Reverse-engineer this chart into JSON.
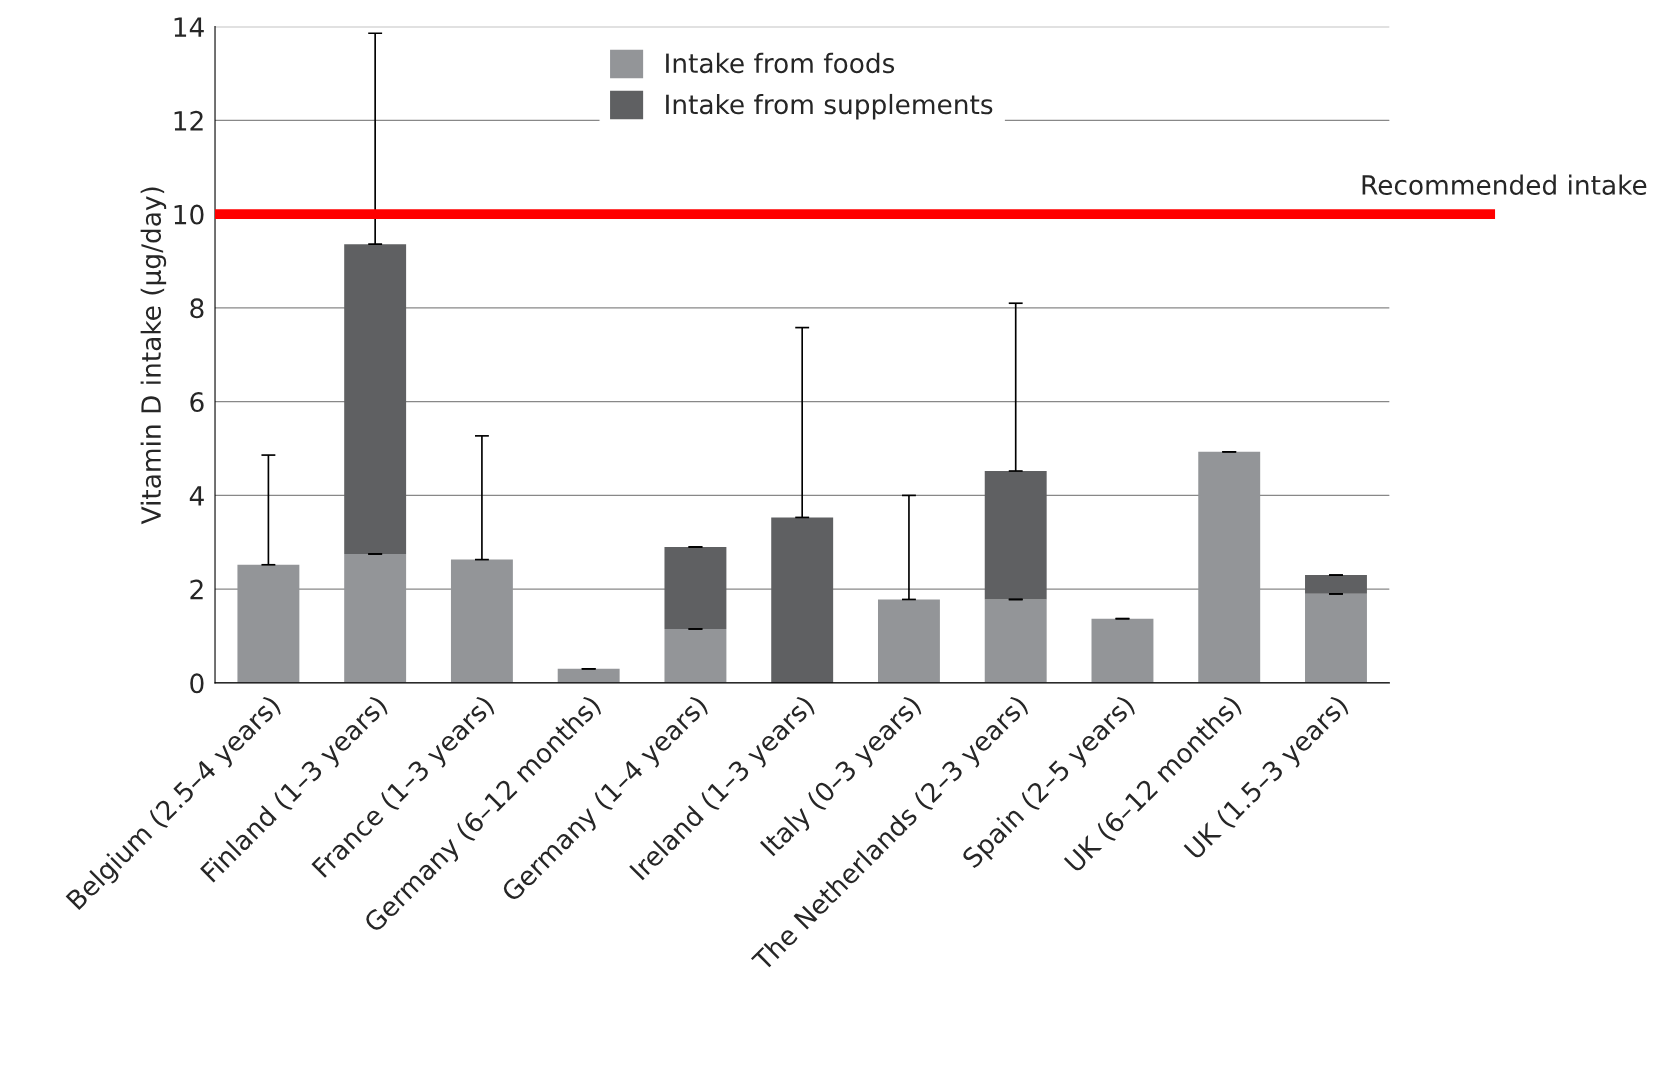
{
  "chart_data": {
    "type": "bar",
    "stacked": true,
    "ylabel": "Vitamin D intake (µg/day)",
    "categories": [
      "Belgium (2.5–4 years)",
      "Finland (1–3 years)",
      "France (1–3 years)",
      "Germany (6–12 months)",
      "Germany (1–4 years)",
      "Ireland (1–3 years)",
      "Italy (0–3 years)",
      "The Netherlands (2–3 years)",
      "Spain (2–5 years)",
      "UK (6–12 months)",
      "UK (1.5–3 years)"
    ],
    "series": [
      {
        "name": "Intake from foods",
        "color": "#939598",
        "values": [
          2.52,
          2.75,
          2.63,
          0.3,
          1.15,
          null,
          1.78,
          1.78,
          1.37,
          4.93,
          1.9
        ],
        "errors": [
          [
            2.52,
            4.86
          ],
          0,
          [
            2.63,
            5.27
          ],
          0,
          0,
          null,
          [
            1.78,
            4.0
          ],
          0,
          0,
          0,
          0
        ]
      },
      {
        "name": "Intake from supplements",
        "color": "#5f6062",
        "values": [
          null,
          6.61,
          null,
          null,
          1.75,
          3.53,
          null,
          2.74,
          null,
          null,
          0.4
        ],
        "errors": [
          null,
          [
            9.36,
            13.86
          ],
          null,
          null,
          0,
          [
            3.53,
            7.58
          ],
          null,
          [
            4.52,
            8.1
          ],
          null,
          null,
          0
        ]
      }
    ],
    "ylim": [
      0,
      14
    ],
    "yticks": [
      0,
      2,
      4,
      6,
      8,
      10,
      12,
      14
    ],
    "grid": "y",
    "legend": "top",
    "ref_lines": [
      {
        "axis": "y",
        "value": 10,
        "label": "Recommended intake",
        "color": "#ff0000"
      }
    ]
  }
}
